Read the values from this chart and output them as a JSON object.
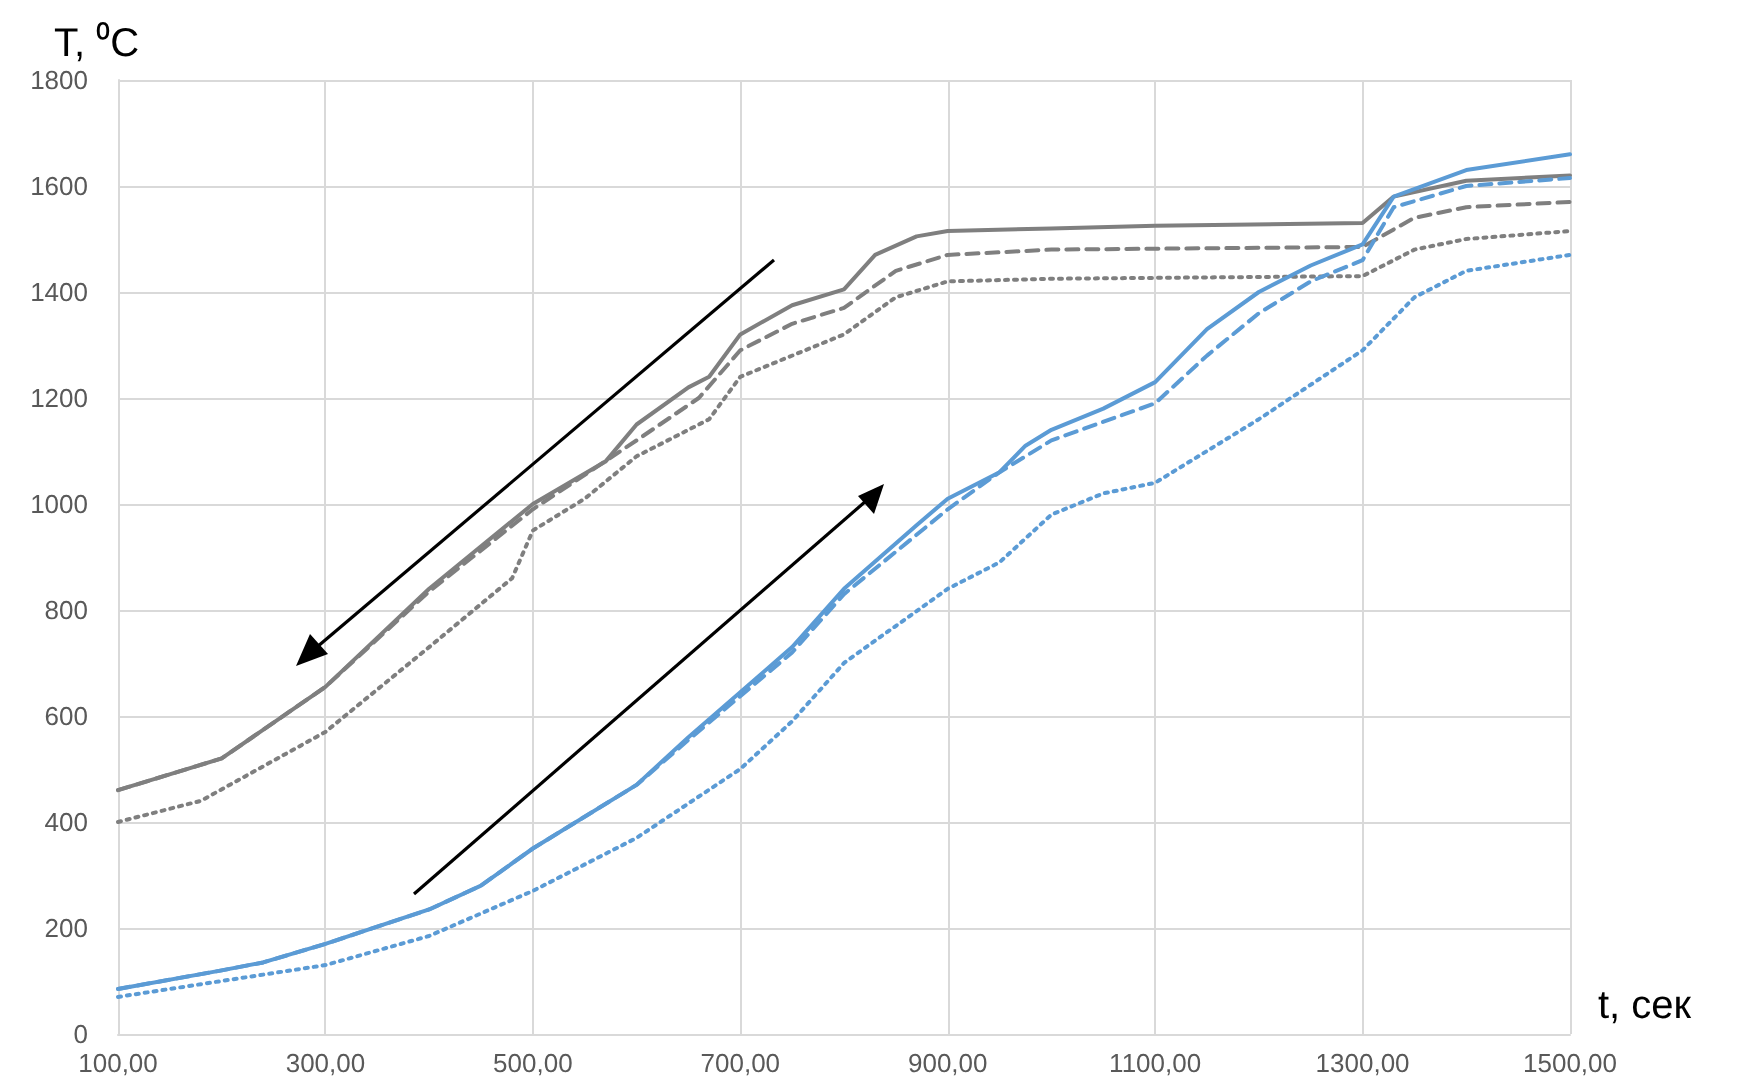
{
  "chart_data": {
    "type": "line",
    "xlabel": "t, сек",
    "ylabel": "T, ⁰C",
    "xlim": [
      100,
      1500
    ],
    "xticks": [
      {
        "value": 100,
        "label": "100,00"
      },
      {
        "value": 300,
        "label": "300,00"
      },
      {
        "value": 500,
        "label": "500,00"
      },
      {
        "value": 700,
        "label": "700,00"
      },
      {
        "value": 900,
        "label": "900,00"
      },
      {
        "value": 1100,
        "label": "1100,00"
      },
      {
        "value": 1300,
        "label": "1300,00"
      },
      {
        "value": 1500,
        "label": "1500,00"
      }
    ],
    "ylim": [
      0,
      1800
    ],
    "yticks": [
      0,
      200,
      400,
      600,
      800,
      1000,
      1200,
      1400,
      1600,
      1800
    ],
    "grid": true,
    "marker": "none",
    "series": [
      {
        "color": "#7f7f7f",
        "line_style": "solid",
        "x": [
          100,
          175,
          200,
          300,
          400,
          500,
          570,
          600,
          650,
          670,
          700,
          750,
          800,
          830,
          870,
          900,
          1000,
          1100,
          1300,
          1330,
          1400,
          1500
        ],
        "values": [
          460,
          505,
          520,
          655,
          840,
          1000,
          1080,
          1150,
          1220,
          1240,
          1320,
          1375,
          1405,
          1470,
          1505,
          1515,
          1520,
          1525,
          1530,
          1580,
          1610,
          1620
        ]
      },
      {
        "color": "#7f7f7f",
        "line_style": "dashed",
        "x": [
          100,
          175,
          200,
          300,
          400,
          500,
          600,
          660,
          700,
          750,
          800,
          850,
          900,
          1000,
          1300,
          1350,
          1400,
          1500
        ],
        "values": [
          460,
          505,
          520,
          655,
          835,
          990,
          1120,
          1200,
          1290,
          1340,
          1370,
          1440,
          1470,
          1480,
          1485,
          1540,
          1560,
          1570
        ]
      },
      {
        "color": "#7f7f7f",
        "line_style": "dotted",
        "x": [
          100,
          180,
          300,
          400,
          480,
          500,
          550,
          600,
          670,
          700,
          800,
          850,
          900,
          1000,
          1300,
          1350,
          1400,
          1500
        ],
        "values": [
          400,
          440,
          570,
          730,
          860,
          950,
          1010,
          1090,
          1160,
          1240,
          1320,
          1390,
          1420,
          1425,
          1430,
          1480,
          1500,
          1515
        ]
      },
      {
        "color": "#5b9bd5",
        "line_style": "solid",
        "x": [
          100,
          200,
          240,
          300,
          400,
          450,
          500,
          600,
          650,
          750,
          800,
          870,
          900,
          950,
          975,
          1000,
          1050,
          1100,
          1150,
          1200,
          1250,
          1300,
          1330,
          1400,
          1500
        ],
        "values": [
          85,
          120,
          135,
          170,
          235,
          280,
          350,
          470,
          560,
          730,
          840,
          960,
          1010,
          1060,
          1110,
          1140,
          1180,
          1230,
          1330,
          1400,
          1450,
          1490,
          1580,
          1630,
          1660
        ]
      },
      {
        "color": "#5b9bd5",
        "line_style": "dashed",
        "x": [
          100,
          200,
          240,
          300,
          400,
          450,
          500,
          600,
          650,
          750,
          800,
          900,
          950,
          1000,
          1100,
          1150,
          1200,
          1250,
          1300,
          1330,
          1400,
          1500
        ],
        "values": [
          85,
          120,
          135,
          170,
          235,
          280,
          350,
          470,
          555,
          720,
          830,
          990,
          1060,
          1120,
          1190,
          1280,
          1360,
          1420,
          1460,
          1560,
          1600,
          1615
        ]
      },
      {
        "color": "#5b9bd5",
        "line_style": "dotted",
        "x": [
          100,
          200,
          300,
          400,
          500,
          600,
          700,
          750,
          800,
          900,
          950,
          1000,
          1050,
          1100,
          1200,
          1300,
          1350,
          1400,
          1500
        ],
        "values": [
          70,
          100,
          130,
          185,
          270,
          370,
          500,
          590,
          700,
          840,
          890,
          980,
          1020,
          1040,
          1160,
          1290,
          1390,
          1440,
          1470
        ]
      }
    ]
  }
}
